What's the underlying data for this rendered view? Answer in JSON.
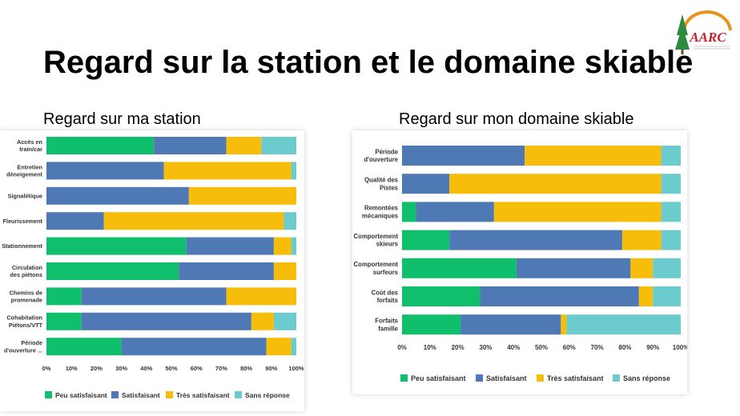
{
  "page": {
    "title": "Regard sur la station et le domaine skiable",
    "logo_text": "AARC",
    "logo_caption": "Association Amicale des Résidents de Châtel"
  },
  "colors": {
    "peu": "#0fbf6b",
    "satisfaisant": "#4f79b5",
    "tres": "#f6bd0b",
    "sans": "#6ccbcd",
    "logo_red": "#c8202a",
    "logo_orange": "#e8941c",
    "tree_green": "#2d8a3e"
  },
  "chart_data": [
    {
      "type": "bar",
      "orientation": "horizontal",
      "stacked": true,
      "title": "Regard sur ma station",
      "categories": [
        [
          "Accès en",
          "train/car"
        ],
        [
          "Entretien",
          "déneigement"
        ],
        [
          "Signalétique"
        ],
        [
          "Fleurissement"
        ],
        [
          "Stationnement"
        ],
        [
          "Circulation",
          "des piétons"
        ],
        [
          "Chemins de",
          "promenade"
        ],
        [
          "Cohabitation",
          "Piétons/VTT"
        ],
        [
          "Période",
          "d'ouverture ..."
        ]
      ],
      "series": [
        {
          "name": "Peu satisfaisant",
          "color_key": "peu",
          "values": [
            43,
            0,
            0,
            0,
            56,
            53,
            14,
            14,
            30
          ]
        },
        {
          "name": "Satisfaisant",
          "color_key": "satisfaisant",
          "values": [
            29,
            47,
            57,
            23,
            35,
            38,
            58,
            68,
            58
          ]
        },
        {
          "name": "Très satisfaisant",
          "color_key": "tres",
          "values": [
            14,
            51,
            43,
            72,
            7,
            9,
            28,
            9,
            10
          ]
        },
        {
          "name": "Sans réponse",
          "color_key": "sans",
          "values": [
            14,
            2,
            0,
            5,
            2,
            0,
            0,
            9,
            2
          ]
        }
      ],
      "xticks": [
        "0%",
        "10%",
        "20%",
        "30%",
        "40%",
        "50%",
        "60%",
        "70%",
        "80%",
        "90%",
        "100%"
      ],
      "xlim": [
        0,
        100
      ],
      "grid": false,
      "legend_position": "bottom"
    },
    {
      "type": "bar",
      "orientation": "horizontal",
      "stacked": true,
      "title": "Regard sur mon domaine skiable",
      "categories": [
        [
          "Période",
          "d'ouverture"
        ],
        [
          "Qualité des",
          "Pistes"
        ],
        [
          "Remontées",
          "mécaniques"
        ],
        [
          "Comportement",
          "skieurs"
        ],
        [
          "Comportement",
          "surfeurs"
        ],
        [
          "Coût des",
          "forfaits"
        ],
        [
          "Forfaits",
          "famille"
        ]
      ],
      "series": [
        {
          "name": "Peu satisfaisant",
          "color_key": "peu",
          "values": [
            0,
            0,
            5,
            17,
            41,
            28,
            21
          ]
        },
        {
          "name": "Satisfaisant",
          "color_key": "satisfaisant",
          "values": [
            44,
            17,
            28,
            62,
            41,
            57,
            36
          ]
        },
        {
          "name": "Très satisfaisant",
          "color_key": "tres",
          "values": [
            49,
            76,
            60,
            14,
            8,
            5,
            2
          ]
        },
        {
          "name": "Sans réponse",
          "color_key": "sans",
          "values": [
            7,
            7,
            7,
            7,
            10,
            10,
            41
          ]
        }
      ],
      "xticks": [
        "0%",
        "10%",
        "20%",
        "30%",
        "40%",
        "50%",
        "60%",
        "70%",
        "80%",
        "90%",
        "100%"
      ],
      "xlim": [
        0,
        100
      ],
      "grid": false,
      "legend_position": "bottom"
    }
  ]
}
